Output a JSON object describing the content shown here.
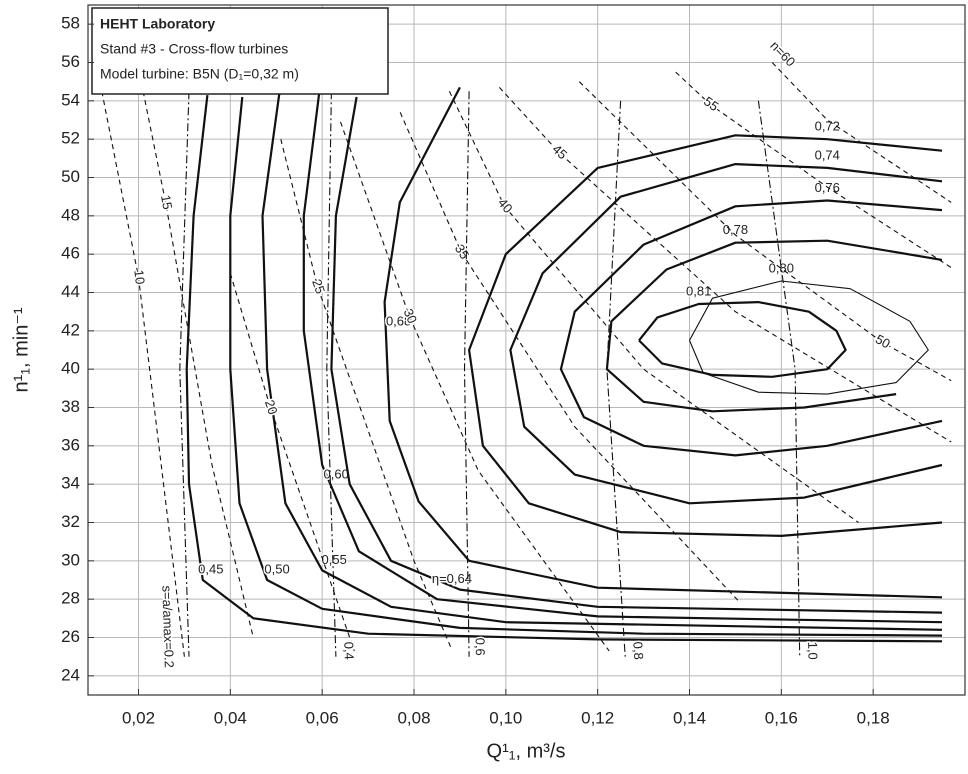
{
  "chart_data": {
    "type": "contour",
    "x_label": "Q¹₁, m³/s",
    "y_label": "n¹₁, min⁻¹",
    "info_box": [
      "HEHT Laboratory",
      "Stand #3 - Cross-flow turbines",
      "Model turbine: B5N (D₁=0,32 m)"
    ],
    "xlim": [
      0.009,
      0.2
    ],
    "ylim": [
      23,
      59
    ],
    "xticks": [
      {
        "value": 0.02,
        "label": "0,02"
      },
      {
        "value": 0.04,
        "label": "0,04"
      },
      {
        "value": 0.06,
        "label": "0,06"
      },
      {
        "value": 0.08,
        "label": "0,08"
      },
      {
        "value": 0.1,
        "label": "0,10"
      },
      {
        "value": 0.12,
        "label": "0,12"
      },
      {
        "value": 0.14,
        "label": "0,14"
      },
      {
        "value": 0.16,
        "label": "0,16"
      },
      {
        "value": 0.18,
        "label": "0,18"
      }
    ],
    "yticks": [
      24,
      26,
      28,
      30,
      32,
      34,
      36,
      38,
      40,
      42,
      44,
      46,
      48,
      50,
      52,
      54,
      56,
      58
    ],
    "grid": true,
    "color": "#111111",
    "series": [
      {
        "name": "0,45",
        "style": "solid",
        "x": [
          0.035,
          0.032,
          0.0305,
          0.031,
          0.034,
          0.045,
          0.07,
          0.12,
          0.195
        ],
        "values": [
          54.3,
          48,
          40,
          34,
          29,
          27,
          26.2,
          25.9,
          25.8
        ]
      },
      {
        "name": "0,50",
        "style": "solid",
        "x": [
          0.0426,
          0.04,
          0.04,
          0.042,
          0.048,
          0.06,
          0.09,
          0.13,
          0.195
        ],
        "values": [
          54.2,
          48,
          40,
          33,
          29,
          27.5,
          26.5,
          26.2,
          26.1
        ]
      },
      {
        "name": "0,55",
        "style": "solid",
        "x": [
          0.0508,
          0.047,
          0.048,
          0.052,
          0.06,
          0.075,
          0.1,
          0.195
        ],
        "values": [
          54.6,
          48,
          40,
          33,
          29.5,
          27.6,
          26.8,
          26.4
        ]
      },
      {
        "name": "0,60",
        "style": "solid",
        "x": [
          0.0595,
          0.056,
          0.056,
          0.06,
          0.068,
          0.085,
          0.12,
          0.195
        ],
        "values": [
          54.7,
          48,
          42,
          35,
          30.5,
          28,
          27.1,
          26.8
        ]
      },
      {
        "name": "η=0,64",
        "style": "solid",
        "x": [
          0.0675,
          0.063,
          0.062,
          0.066,
          0.075,
          0.09,
          0.12,
          0.195
        ],
        "values": [
          54.2,
          48,
          40,
          34,
          30,
          28.5,
          27.6,
          27.3
        ]
      },
      {
        "name": "0,68",
        "style": "solid",
        "x": [
          0.09,
          0.0769,
          0.0736,
          0.0747,
          0.081,
          0.092,
          0.12,
          0.195
        ],
        "values": [
          54.7,
          48.7,
          43.5,
          37.3,
          33.1,
          30,
          28.6,
          28.1
        ]
      },
      {
        "name": "0,72",
        "style": "solid",
        "x": [
          0.195,
          0.17,
          0.15,
          0.12,
          0.1,
          0.092,
          0.095,
          0.105,
          0.125,
          0.16,
          0.195
        ],
        "values": [
          51.4,
          52,
          52.2,
          50.5,
          46,
          41,
          36,
          33,
          31.5,
          31.3,
          32
        ]
      },
      {
        "name": "0,74",
        "style": "solid",
        "x": [
          0.195,
          0.17,
          0.15,
          0.125,
          0.108,
          0.101,
          0.104,
          0.115,
          0.14,
          0.165,
          0.195
        ],
        "values": [
          49.8,
          50.5,
          50.7,
          49,
          45,
          41,
          37,
          34.5,
          33,
          33.3,
          35
        ]
      },
      {
        "name": "0,76",
        "style": "solid",
        "x": [
          0.195,
          0.17,
          0.15,
          0.13,
          0.115,
          0.112,
          0.117,
          0.13,
          0.15,
          0.17,
          0.195
        ],
        "values": [
          48.3,
          48.8,
          48.5,
          46.5,
          43,
          40,
          37.5,
          36,
          35.5,
          36,
          37.3
        ]
      },
      {
        "name": "0,78",
        "style": "solid",
        "x": [
          0.195,
          0.17,
          0.15,
          0.135,
          0.123,
          0.122,
          0.13,
          0.145,
          0.165,
          0.185
        ],
        "values": [
          45.7,
          46.7,
          46.6,
          45.2,
          42.5,
          40,
          38.3,
          37.8,
          38,
          38.7
        ]
      },
      {
        "name": "0,80",
        "style": "thin",
        "x": [
          0.14,
          0.145,
          0.16,
          0.175,
          0.188,
          0.192,
          0.185,
          0.17,
          0.155,
          0.143,
          0.14
        ],
        "values": [
          41.5,
          43.7,
          44.6,
          44.2,
          42.5,
          41,
          39.3,
          38.7,
          38.8,
          39.8,
          41.5
        ]
      },
      {
        "name": "0,81",
        "style": "solid",
        "x": [
          0.129,
          0.133,
          0.142,
          0.155,
          0.166,
          0.172,
          0.174,
          0.17,
          0.158,
          0.145,
          0.134,
          0.129
        ],
        "values": [
          41.5,
          42.7,
          43.4,
          43.5,
          43,
          42,
          41,
          40,
          39.6,
          39.7,
          40.3,
          41.5
        ]
      },
      {
        "name": "10",
        "style": "dashed",
        "x": [
          0.012,
          0.02,
          0.03
        ],
        "values": [
          54.5,
          44.8,
          25
        ]
      },
      {
        "name": "15",
        "style": "dashed",
        "x": [
          0.021,
          0.0259,
          0.036,
          0.045
        ],
        "values": [
          54.5,
          48.7,
          35,
          26
        ]
      },
      {
        "name": "20",
        "style": "dashed",
        "x": [
          0.04,
          0.0487,
          0.067
        ],
        "values": [
          45,
          38,
          25.3
        ]
      },
      {
        "name": "25",
        "style": "dashed",
        "x": [
          0.051,
          0.059,
          0.08,
          0.088
        ],
        "values": [
          52,
          44.3,
          30,
          25.5
        ]
      },
      {
        "name": "30",
        "style": "dashed",
        "x": [
          0.064,
          0.079,
          0.094,
          0.1225
        ],
        "values": [
          52.9,
          42.75,
          34.7,
          25.3
        ]
      },
      {
        "name": "35",
        "style": "dashed",
        "x": [
          0.077,
          0.0903,
          0.115,
          0.1507
        ],
        "values": [
          53.4,
          46.1,
          37,
          27.9
        ]
      },
      {
        "name": "40",
        "style": "dashed",
        "x": [
          0.0877,
          0.0997,
          0.13,
          0.1768
        ],
        "values": [
          54.5,
          48.5,
          40,
          32
        ]
      },
      {
        "name": "45",
        "style": "dashed",
        "x": [
          0.0986,
          0.1116,
          0.15,
          0.197
        ],
        "values": [
          54.7,
          51.3,
          43,
          36.2
        ]
      },
      {
        "name": "50",
        "style": "dashed",
        "x": [
          0.116,
          0.15,
          0.182,
          0.197
        ],
        "values": [
          55,
          47,
          41.4,
          39.4
        ]
      },
      {
        "name": "55",
        "style": "dashed",
        "x": [
          0.137,
          0.1446,
          0.17,
          0.197
        ],
        "values": [
          55.5,
          53.8,
          49.5,
          45.3
        ]
      },
      {
        "name": "n=60",
        "style": "dashed",
        "x": [
          0.158,
          0.17,
          0.197
        ],
        "values": [
          56,
          53,
          48.7
        ]
      },
      {
        "name": "s=a/amax=0.2",
        "style": "dashdot",
        "x": [
          0.031,
          0.029,
          0.031
        ],
        "values": [
          54.5,
          40,
          25
        ]
      },
      {
        "name": "0,4",
        "style": "dashdot",
        "x": [
          0.062,
          0.061,
          0.063
        ],
        "values": [
          54.5,
          40,
          25
        ]
      },
      {
        "name": "0,6",
        "style": "dashdot",
        "x": [
          0.092,
          0.091,
          0.092
        ],
        "values": [
          54.5,
          40,
          25
        ]
      },
      {
        "name": "0,8",
        "style": "dashdot",
        "x": [
          0.125,
          0.122,
          0.126
        ],
        "values": [
          54,
          40,
          25
        ]
      },
      {
        "name": "1,0",
        "style": "dashdot",
        "x": [
          0.155,
          0.163,
          0.164
        ],
        "values": [
          54,
          40,
          25
        ]
      }
    ]
  }
}
